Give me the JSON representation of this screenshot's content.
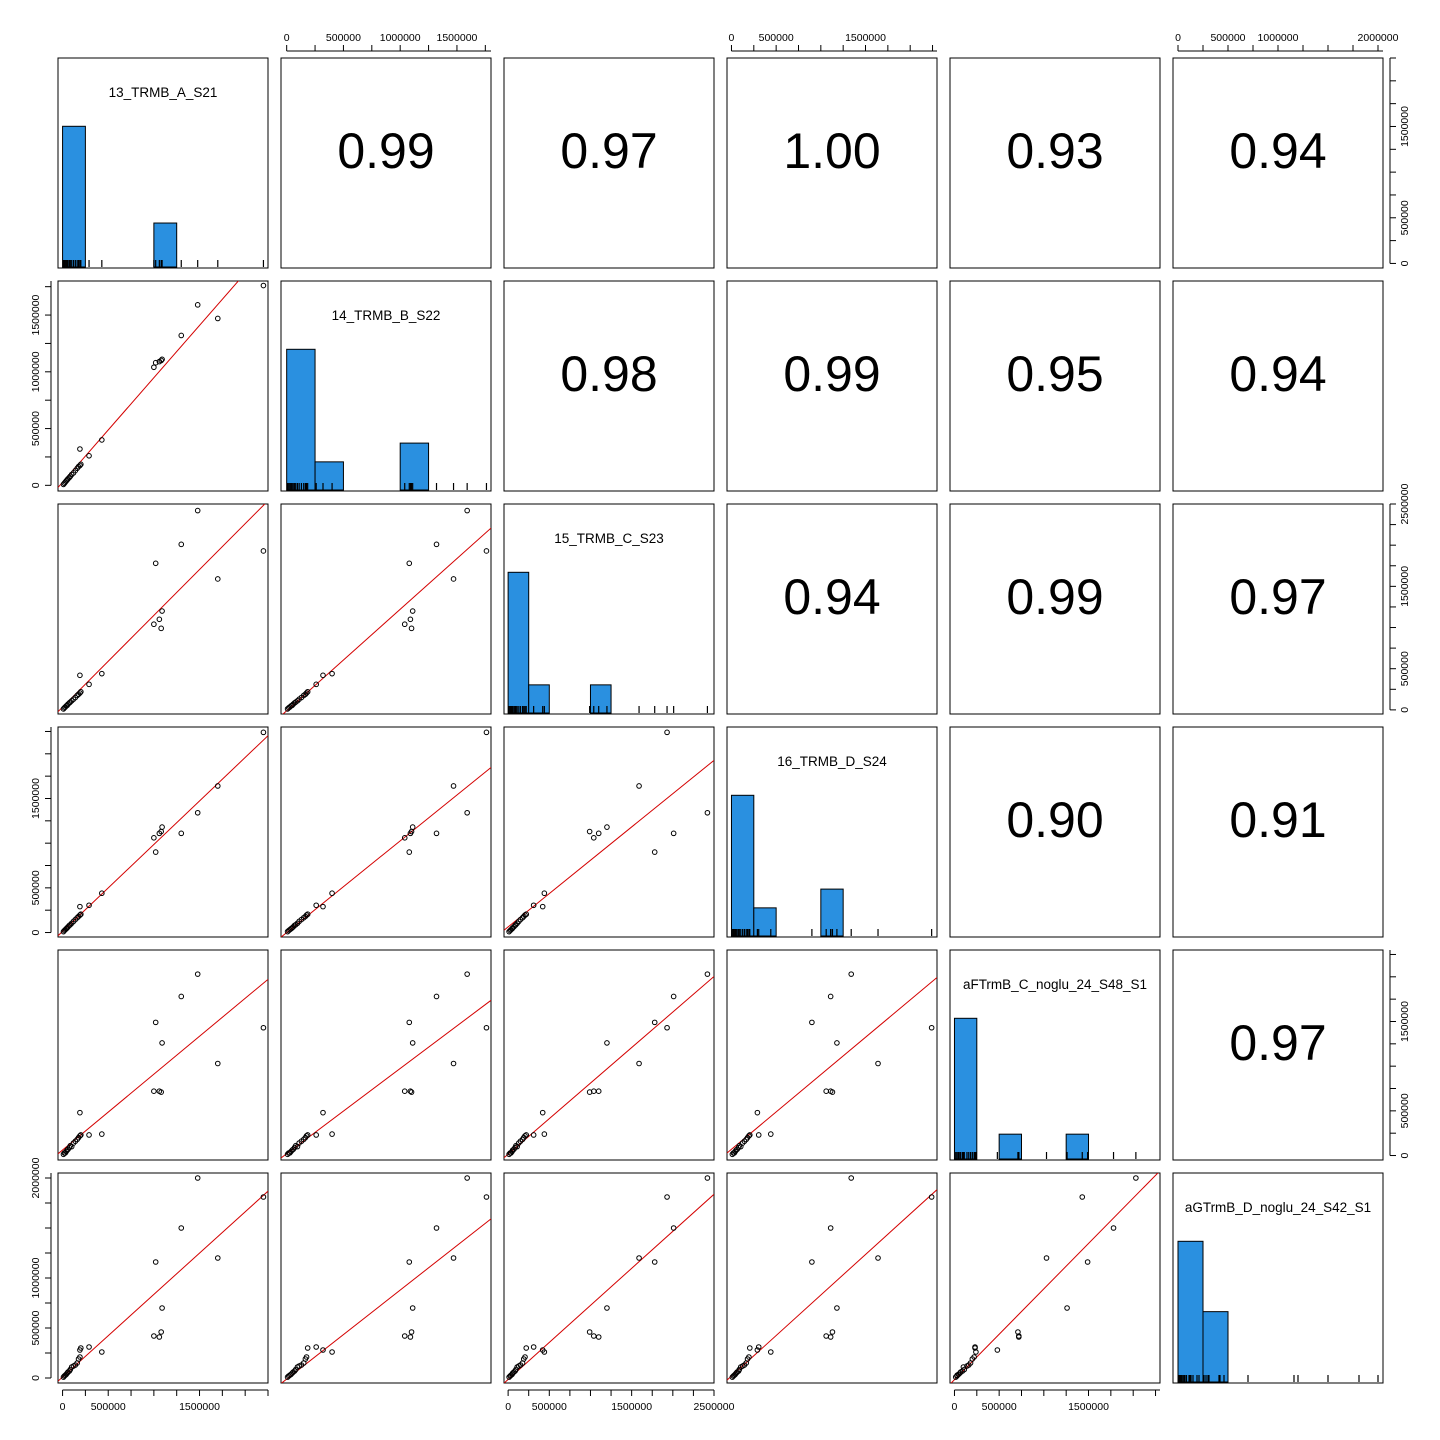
{
  "chart_data": {
    "type": "scatter-matrix",
    "title": "",
    "variables": [
      "13_TRMB_A_S21",
      "14_TRMB_B_S22",
      "15_TRMB_C_S23",
      "16_TRMB_D_S24",
      "aFTrmB_C_noglu_24_S48_S1",
      "aGTrmB_D_noglu_24_S42_S1"
    ],
    "correlations": [
      {
        "row": 0,
        "col": 1,
        "value": "0.99"
      },
      {
        "row": 0,
        "col": 2,
        "value": "0.97"
      },
      {
        "row": 0,
        "col": 3,
        "value": "1.00"
      },
      {
        "row": 0,
        "col": 4,
        "value": "0.93"
      },
      {
        "row": 0,
        "col": 5,
        "value": "0.94"
      },
      {
        "row": 1,
        "col": 2,
        "value": "0.98"
      },
      {
        "row": 1,
        "col": 3,
        "value": "0.99"
      },
      {
        "row": 1,
        "col": 4,
        "value": "0.95"
      },
      {
        "row": 1,
        "col": 5,
        "value": "0.94"
      },
      {
        "row": 2,
        "col": 3,
        "value": "0.94"
      },
      {
        "row": 2,
        "col": 4,
        "value": "0.99"
      },
      {
        "row": 2,
        "col": 5,
        "value": "0.97"
      },
      {
        "row": 3,
        "col": 4,
        "value": "0.90"
      },
      {
        "row": 3,
        "col": 5,
        "value": "0.91"
      },
      {
        "row": 4,
        "col": 5,
        "value": "0.97"
      }
    ],
    "ranges": [
      [
        -50000,
        2250000
      ],
      [
        -50000,
        1800000
      ],
      [
        -50000,
        2500000
      ],
      [
        -50000,
        2300000
      ],
      [
        -50000,
        2300000
      ],
      [
        -50000,
        2050000
      ]
    ],
    "ticks": [
      [
        "0",
        "500000",
        "1500000"
      ],
      [
        "0",
        "500000",
        "1000000",
        "1500000"
      ],
      [
        "0",
        "500000",
        "1500000",
        "2500000"
      ],
      [
        "0",
        "500000",
        "1500000"
      ],
      [
        "0",
        "500000",
        "1500000"
      ],
      [
        "0",
        "500000",
        "1000000",
        "2000000"
      ]
    ],
    "axes_top_cols": [
      1,
      3,
      5
    ],
    "axes_bottom_cols": [
      0,
      2,
      4
    ],
    "axes_left_rows": [
      1,
      3,
      5
    ],
    "axes_right_rows": [
      0,
      2,
      4
    ],
    "observations": [
      [
        10000,
        8000,
        12000,
        10000,
        14000,
        9000
      ],
      [
        20000,
        18000,
        25000,
        22000,
        28000,
        20000
      ],
      [
        30000,
        28000,
        35000,
        32000,
        30000,
        28000
      ],
      [
        40000,
        38000,
        48000,
        42000,
        45000,
        36000
      ],
      [
        50000,
        48000,
        55000,
        52000,
        60000,
        48000
      ],
      [
        60000,
        58000,
        70000,
        64000,
        70000,
        60000
      ],
      [
        75000,
        70000,
        85000,
        80000,
        90000,
        70000
      ],
      [
        85000,
        80000,
        95000,
        88000,
        110000,
        85000
      ],
      [
        100000,
        95000,
        110000,
        104000,
        100000,
        110000
      ],
      [
        120000,
        110000,
        130000,
        125000,
        140000,
        120000
      ],
      [
        140000,
        130000,
        150000,
        145000,
        160000,
        130000
      ],
      [
        160000,
        150000,
        175000,
        165000,
        180000,
        150000
      ],
      [
        175000,
        165000,
        190000,
        180000,
        200000,
        190000
      ],
      [
        190000,
        175000,
        205000,
        195000,
        220000,
        210000
      ],
      [
        200000,
        185000,
        220000,
        205000,
        230000,
        300000
      ],
      [
        190000,
        320000,
        420000,
        290000,
        480000,
        280000
      ],
      [
        290000,
        260000,
        310000,
        305000,
        230000,
        310000
      ],
      [
        430000,
        400000,
        440000,
        440000,
        240000,
        260000
      ],
      [
        1000000,
        1040000,
        1040000,
        1060000,
        720000,
        420000
      ],
      [
        1060000,
        1090000,
        1100000,
        1110000,
        720000,
        410000
      ],
      [
        1080000,
        1100000,
        990000,
        1130000,
        710000,
        460000
      ],
      [
        1090000,
        1110000,
        1200000,
        1180000,
        1260000,
        700000
      ],
      [
        1020000,
        1080000,
        1780000,
        900000,
        1490000,
        1160000
      ],
      [
        1480000,
        1590000,
        2420000,
        1340000,
        2030000,
        2000000
      ],
      [
        1300000,
        1320000,
        2010000,
        1110000,
        1780000,
        1500000
      ],
      [
        1700000,
        1470000,
        1590000,
        1640000,
        1030000,
        1200000
      ],
      [
        2200000,
        1760000,
        1930000,
        2240000,
        1430000,
        1810000
      ]
    ]
  }
}
